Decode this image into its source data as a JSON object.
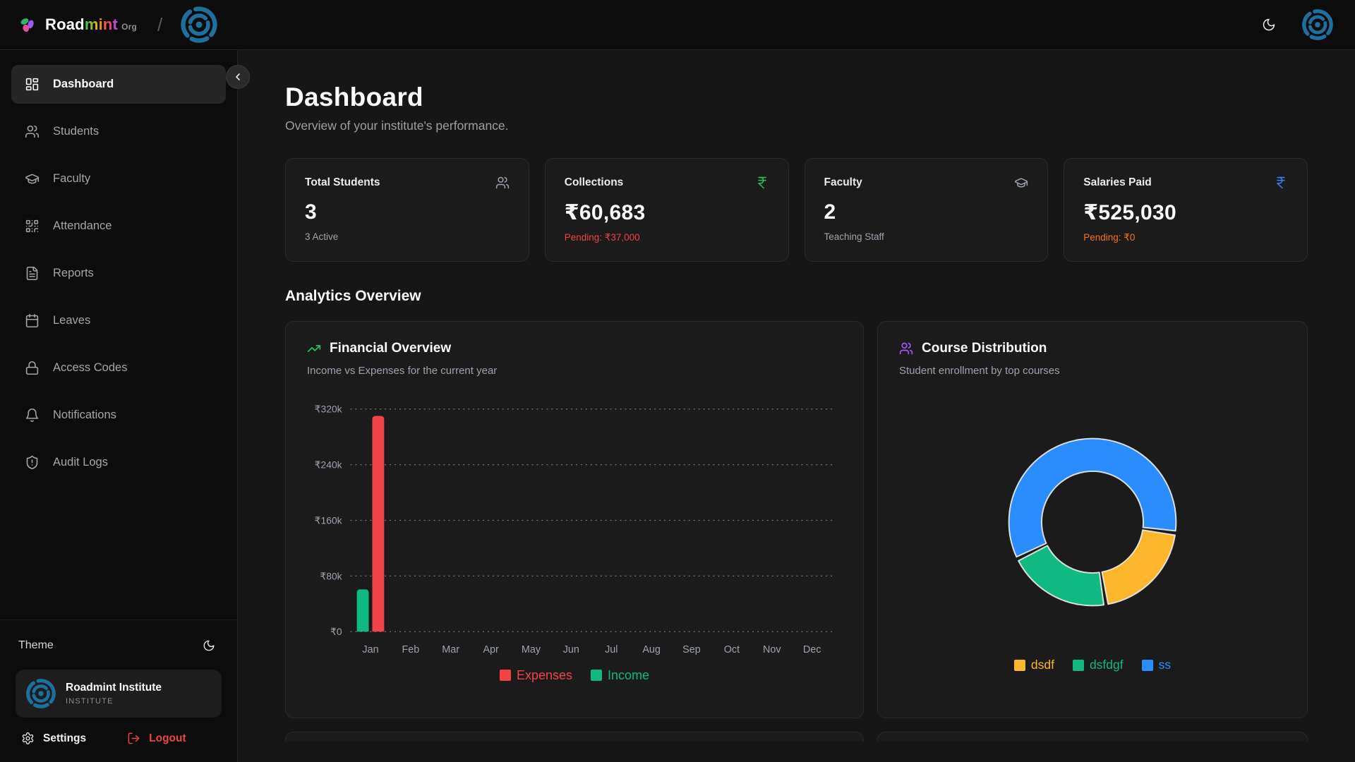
{
  "brand": {
    "name_primary": "Road",
    "name_accent": "mint",
    "suffix": "Org",
    "separator": "/"
  },
  "sidebar": {
    "items": [
      {
        "label": "Dashboard",
        "icon": "dashboard-grid-icon",
        "active": true
      },
      {
        "label": "Students",
        "icon": "users-icon",
        "active": false
      },
      {
        "label": "Faculty",
        "icon": "graduation-cap-icon",
        "active": false
      },
      {
        "label": "Attendance",
        "icon": "qr-code-icon",
        "active": false
      },
      {
        "label": "Reports",
        "icon": "file-text-icon",
        "active": false
      },
      {
        "label": "Leaves",
        "icon": "calendar-icon",
        "active": false
      },
      {
        "label": "Access Codes",
        "icon": "lock-icon",
        "active": false
      },
      {
        "label": "Notifications",
        "icon": "bell-icon",
        "active": false
      },
      {
        "label": "Audit Logs",
        "icon": "shield-alert-icon",
        "active": false
      }
    ],
    "theme_label": "Theme",
    "profile": {
      "name": "Roadmint Institute",
      "role": "INSTITUTE"
    },
    "settings_label": "Settings",
    "logout_label": "Logout"
  },
  "page": {
    "title": "Dashboard",
    "subtitle": "Overview of your institute's performance."
  },
  "stat_cards": [
    {
      "label": "Total Students",
      "value": "3",
      "sub": "3 Active",
      "icon": "users-icon",
      "icon_color": "#9ca3af",
      "sub_color": "#9ca3af"
    },
    {
      "label": "Collections",
      "value": "₹60,683",
      "sub": "Pending: ₹37,000",
      "icon": "rupee-icon",
      "icon_color": "#22c55e",
      "sub_color": "#ef4444"
    },
    {
      "label": "Faculty",
      "value": "2",
      "sub": "Teaching Staff",
      "icon": "graduation-cap-icon",
      "icon_color": "#9ca3af",
      "sub_color": "#9ca3af"
    },
    {
      "label": "Salaries Paid",
      "value": "₹525,030",
      "sub": "Pending: ₹0",
      "icon": "rupee-icon",
      "icon_color": "#3b82f6",
      "sub_color": "#f97316"
    }
  ],
  "analytics": {
    "heading": "Analytics Overview",
    "financial": {
      "title": "Financial Overview",
      "subtitle": "Income vs Expenses for the current year",
      "icon": "trending-up-icon",
      "icon_color": "#22c55e"
    },
    "courses": {
      "title": "Course Distribution",
      "subtitle": "Student enrollment by top courses",
      "icon": "users-icon",
      "icon_color": "#a855f7"
    }
  },
  "chart_data": [
    {
      "type": "bar",
      "title": "Financial Overview",
      "subtitle": "Income vs Expenses for the current year",
      "categories": [
        "Jan",
        "Feb",
        "Mar",
        "Apr",
        "May",
        "Jun",
        "Jul",
        "Aug",
        "Sep",
        "Oct",
        "Nov",
        "Dec"
      ],
      "series": [
        {
          "name": "Expenses",
          "color": "#f04449",
          "values": [
            310000,
            0,
            0,
            0,
            0,
            0,
            0,
            0,
            0,
            0,
            0,
            0
          ]
        },
        {
          "name": "Income",
          "color": "#10b981",
          "values": [
            60683,
            0,
            0,
            0,
            0,
            0,
            0,
            0,
            0,
            0,
            0,
            0
          ]
        }
      ],
      "y_ticks": [
        {
          "value": 0,
          "label": "₹0"
        },
        {
          "value": 80000,
          "label": "₹80k"
        },
        {
          "value": 160000,
          "label": "₹160k"
        },
        {
          "value": 240000,
          "label": "₹240k"
        },
        {
          "value": 320000,
          "label": "₹320k"
        }
      ],
      "ylim": [
        0,
        320000
      ],
      "grid": "horizontal-dashed",
      "legend_position": "bottom"
    },
    {
      "type": "doughnut",
      "title": "Course Distribution",
      "labels": [
        "dsdf",
        "dsfdgf",
        "ss"
      ],
      "colors": [
        "#fbb62b",
        "#10b981",
        "#2b8cfe"
      ],
      "values_percent_estimated": [
        20,
        20,
        60
      ],
      "start_angle_deg": 99,
      "legend_position": "bottom"
    }
  ]
}
